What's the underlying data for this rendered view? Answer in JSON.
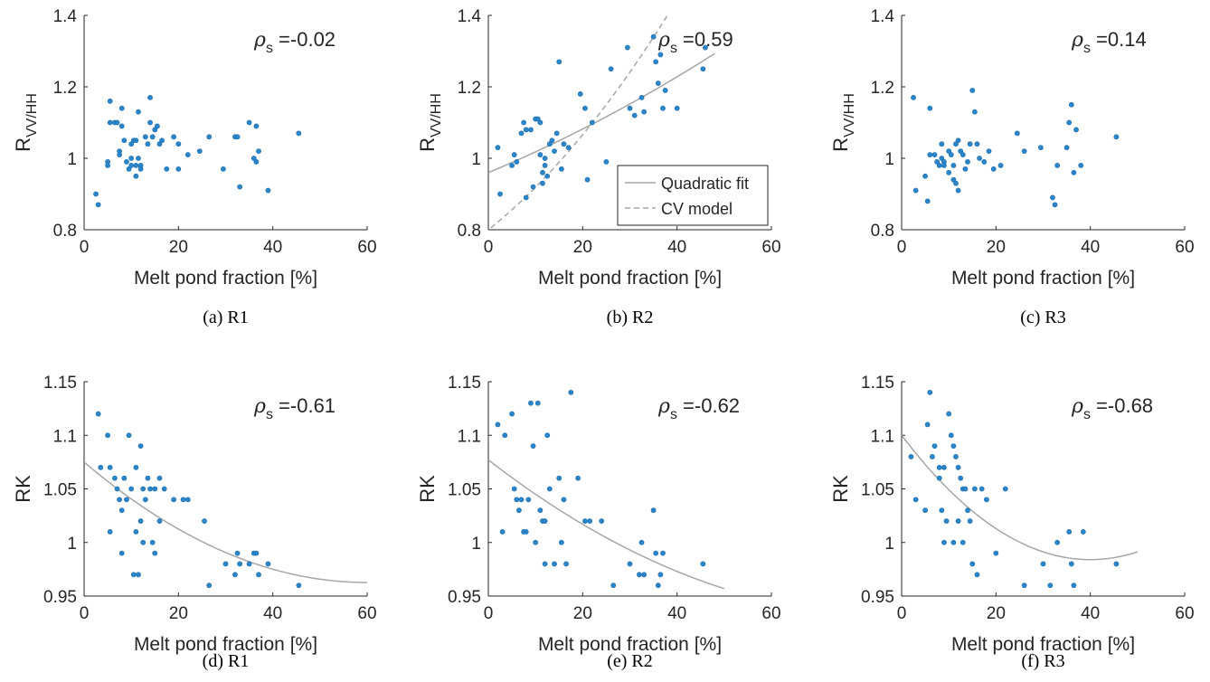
{
  "chart_data": [
    {
      "type": "scatter",
      "caption": "(a) R1",
      "xlabel": "Melt pond fraction [%]",
      "ylabel": "R",
      "ylabel_sub": "VV/HH",
      "xlim": [
        0,
        60
      ],
      "ylim": [
        0.8,
        1.4
      ],
      "xticks": [
        "0",
        "20",
        "40",
        "60"
      ],
      "yticks": [
        "0.8",
        "1",
        "1.2",
        "1.4"
      ],
      "annotation": {
        "symbol": "ρ",
        "sub": "s",
        "value": " =-0.02"
      },
      "points": [
        [
          2.5,
          0.9
        ],
        [
          3,
          0.87
        ],
        [
          5,
          0.99
        ],
        [
          5,
          0.98
        ],
        [
          5.5,
          1.16
        ],
        [
          5.5,
          1.1
        ],
        [
          6.5,
          1.1
        ],
        [
          7,
          1.1
        ],
        [
          7.5,
          1.02
        ],
        [
          7.5,
          1.01
        ],
        [
          8,
          1.14
        ],
        [
          8,
          1.09
        ],
        [
          8.5,
          1.05
        ],
        [
          9,
          0.99
        ],
        [
          9.5,
          0.97
        ],
        [
          10,
          1.04
        ],
        [
          10,
          1.0
        ],
        [
          10,
          0.98
        ],
        [
          10.5,
          1.05
        ],
        [
          11,
          1.05
        ],
        [
          11,
          0.98
        ],
        [
          11,
          0.95
        ],
        [
          11.5,
          1.13
        ],
        [
          11.5,
          1.0
        ],
        [
          12,
          0.98
        ],
        [
          12,
          0.97
        ],
        [
          13,
          1.06
        ],
        [
          13.5,
          1.04
        ],
        [
          14,
          1.17
        ],
        [
          14,
          1.1
        ],
        [
          14.5,
          1.06
        ],
        [
          15,
          1.08
        ],
        [
          15.5,
          1.09
        ],
        [
          16,
          1.04
        ],
        [
          16.5,
          1.05
        ],
        [
          17.5,
          0.97
        ],
        [
          19,
          1.06
        ],
        [
          20,
          1.04
        ],
        [
          20,
          0.97
        ],
        [
          22,
          1.01
        ],
        [
          24.5,
          1.02
        ],
        [
          26.5,
          1.06
        ],
        [
          29.5,
          0.97
        ],
        [
          32,
          1.06
        ],
        [
          32.5,
          1.06
        ],
        [
          33,
          0.92
        ],
        [
          35,
          1.1
        ],
        [
          36,
          1.0
        ],
        [
          36.5,
          0.99
        ],
        [
          36.5,
          1.09
        ],
        [
          37,
          1.02
        ],
        [
          39,
          0.91
        ],
        [
          45.5,
          1.07
        ]
      ],
      "fit": null
    },
    {
      "type": "scatter",
      "caption": "(b) R2",
      "xlabel": "Melt pond fraction [%]",
      "ylabel": "R",
      "ylabel_sub": "VV/HH",
      "xlim": [
        0,
        60
      ],
      "ylim": [
        0.8,
        1.4
      ],
      "xticks": [
        "0",
        "20",
        "40",
        "60"
      ],
      "yticks": [
        "0.8",
        "1",
        "1.2",
        "1.4"
      ],
      "annotation": {
        "symbol": "ρ",
        "sub": "s",
        "value": " =0.59"
      },
      "legend": {
        "position": "bottom-right",
        "entries": [
          "Quadratic fit",
          "CV model"
        ]
      },
      "points": [
        [
          2,
          1.03
        ],
        [
          2.5,
          0.9
        ],
        [
          5,
          0.98
        ],
        [
          5.5,
          1.01
        ],
        [
          6,
          0.99
        ],
        [
          7,
          1.07
        ],
        [
          7.5,
          1.1
        ],
        [
          8,
          1.08
        ],
        [
          8,
          0.89
        ],
        [
          9,
          1.08
        ],
        [
          9.5,
          0.92
        ],
        [
          10,
          1.11
        ],
        [
          10.5,
          1.11
        ],
        [
          11,
          1.1
        ],
        [
          11,
          1.01
        ],
        [
          11.5,
          0.96
        ],
        [
          11.5,
          0.93
        ],
        [
          12,
          1.0
        ],
        [
          12,
          0.98
        ],
        [
          12.5,
          0.95
        ],
        [
          13,
          1.04
        ],
        [
          13.5,
          1.05
        ],
        [
          14,
          1.02
        ],
        [
          14.5,
          1.07
        ],
        [
          15,
          1.27
        ],
        [
          15.5,
          0.97
        ],
        [
          16,
          1.04
        ],
        [
          17,
          1.03
        ],
        [
          19.5,
          1.18
        ],
        [
          20.5,
          1.14
        ],
        [
          21,
          0.94
        ],
        [
          22,
          1.1
        ],
        [
          25,
          0.99
        ],
        [
          26,
          1.25
        ],
        [
          29.5,
          1.31
        ],
        [
          30,
          1.14
        ],
        [
          31,
          1.12
        ],
        [
          32.5,
          1.17
        ],
        [
          33,
          1.13
        ],
        [
          35,
          1.34
        ],
        [
          35.5,
          1.27
        ],
        [
          36,
          1.21
        ],
        [
          36.5,
          1.29
        ],
        [
          37,
          1.14
        ],
        [
          37.5,
          1.19
        ],
        [
          40,
          1.14
        ],
        [
          45.5,
          1.25
        ],
        [
          46,
          1.31
        ]
      ],
      "fit": {
        "name": "Quadratic fit",
        "coef": [
          0.96,
          0.0055,
          3e-05
        ],
        "range": [
          0,
          48
        ]
      },
      "model": {
        "name": "CV model",
        "coef": [
          0.8,
          0.0105,
          0.00014
        ],
        "range": [
          0.5,
          38
        ]
      }
    },
    {
      "type": "scatter",
      "caption": "(c) R3",
      "xlabel": "Melt pond fraction [%]",
      "ylabel": "R",
      "ylabel_sub": "VV/HH",
      "xlim": [
        0,
        60
      ],
      "ylim": [
        0.8,
        1.4
      ],
      "xticks": [
        "0",
        "20",
        "40",
        "60"
      ],
      "yticks": [
        "0.8",
        "1",
        "1.2",
        "1.4"
      ],
      "annotation": {
        "symbol": "ρ",
        "sub": "s",
        "value": " =0.14"
      },
      "points": [
        [
          2.5,
          1.17
        ],
        [
          3,
          0.91
        ],
        [
          5,
          0.95
        ],
        [
          5.5,
          0.88
        ],
        [
          6,
          1.14
        ],
        [
          6,
          1.01
        ],
        [
          7,
          1.01
        ],
        [
          7.5,
          0.99
        ],
        [
          8,
          0.98
        ],
        [
          8.5,
          1.04
        ],
        [
          8.5,
          1.0
        ],
        [
          9,
          0.99
        ],
        [
          9,
          0.98
        ],
        [
          10,
          1.02
        ],
        [
          10,
          0.96
        ],
        [
          10.5,
          1.01
        ],
        [
          11,
          0.98
        ],
        [
          11,
          0.94
        ],
        [
          11.5,
          1.04
        ],
        [
          11.5,
          0.93
        ],
        [
          12,
          1.05
        ],
        [
          12,
          0.91
        ],
        [
          12.5,
          1.02
        ],
        [
          13,
          1.01
        ],
        [
          13.5,
          0.97
        ],
        [
          14,
          0.99
        ],
        [
          14.5,
          1.04
        ],
        [
          15,
          1.19
        ],
        [
          15.5,
          1.13
        ],
        [
          16,
          1.04
        ],
        [
          16.5,
          1.0
        ],
        [
          17.5,
          0.99
        ],
        [
          18.5,
          1.02
        ],
        [
          19.5,
          0.97
        ],
        [
          21,
          0.98
        ],
        [
          24.5,
          1.07
        ],
        [
          26,
          1.02
        ],
        [
          29.5,
          1.03
        ],
        [
          32,
          0.89
        ],
        [
          32.5,
          0.87
        ],
        [
          33,
          0.98
        ],
        [
          35,
          1.03
        ],
        [
          35.5,
          1.1
        ],
        [
          36,
          1.15
        ],
        [
          36.5,
          0.96
        ],
        [
          37,
          1.08
        ],
        [
          38,
          0.98
        ],
        [
          45.5,
          1.06
        ]
      ],
      "fit": null
    },
    {
      "type": "scatter",
      "caption": "(d) R1",
      "xlabel": "Melt pond fraction [%]",
      "ylabel": "RK",
      "ylabel_sub": "",
      "xlim": [
        0,
        60
      ],
      "ylim": [
        0.95,
        1.15
      ],
      "xticks": [
        "0",
        "20",
        "40",
        "60"
      ],
      "yticks": [
        "0.95",
        "1",
        "1.05",
        "1.1",
        "1.15"
      ],
      "annotation": {
        "symbol": "ρ",
        "sub": "s",
        "value": " =-0.61"
      },
      "points": [
        [
          3,
          1.12
        ],
        [
          3.5,
          1.07
        ],
        [
          5,
          1.1
        ],
        [
          5.5,
          1.07
        ],
        [
          5.5,
          1.01
        ],
        [
          6.5,
          1.06
        ],
        [
          7,
          1.05
        ],
        [
          7.5,
          1.04
        ],
        [
          8,
          1.03
        ],
        [
          8,
          0.99
        ],
        [
          8.5,
          1.06
        ],
        [
          9,
          1.04
        ],
        [
          9.5,
          1.1
        ],
        [
          10,
          1.05
        ],
        [
          10.5,
          0.97
        ],
        [
          11,
          1.01
        ],
        [
          11,
          1.07
        ],
        [
          11.5,
          0.97
        ],
        [
          12,
          1.09
        ],
        [
          12,
          1.02
        ],
        [
          12.5,
          1.05
        ],
        [
          12.5,
          1.0
        ],
        [
          13,
          1.04
        ],
        [
          13.5,
          1.06
        ],
        [
          14,
          1.05
        ],
        [
          14.5,
          1.0
        ],
        [
          15,
          0.99
        ],
        [
          15,
          1.05
        ],
        [
          16,
          1.06
        ],
        [
          16,
          1.02
        ],
        [
          17,
          1.05
        ],
        [
          19,
          1.04
        ],
        [
          21,
          1.04
        ],
        [
          22,
          1.04
        ],
        [
          25.5,
          1.02
        ],
        [
          26.5,
          0.96
        ],
        [
          30,
          0.98
        ],
        [
          32,
          0.97
        ],
        [
          32.5,
          0.99
        ],
        [
          33,
          0.98
        ],
        [
          35,
          0.98
        ],
        [
          36,
          0.99
        ],
        [
          36.5,
          0.99
        ],
        [
          37,
          0.97
        ],
        [
          39,
          0.98
        ],
        [
          45.5,
          0.96
        ]
      ],
      "fit": {
        "name": "Quadratic fit",
        "coef": [
          1.075,
          -0.00375,
          3.13e-05
        ],
        "range": [
          0,
          60
        ]
      }
    },
    {
      "type": "scatter",
      "caption": "(e) R2",
      "xlabel": "Melt pond fraction [%]",
      "ylabel": "RK",
      "ylabel_sub": "",
      "xlim": [
        0,
        60
      ],
      "ylim": [
        0.95,
        1.15
      ],
      "xticks": [
        "0",
        "20",
        "40",
        "60"
      ],
      "yticks": [
        "0.95",
        "1",
        "1.05",
        "1.1",
        "1.15"
      ],
      "annotation": {
        "symbol": "ρ",
        "sub": "s",
        "value": " =-0.62"
      },
      "points": [
        [
          2,
          1.11
        ],
        [
          3,
          1.01
        ],
        [
          3.5,
          1.1
        ],
        [
          5,
          1.12
        ],
        [
          5.5,
          1.05
        ],
        [
          6,
          1.04
        ],
        [
          6.5,
          1.03
        ],
        [
          7,
          1.04
        ],
        [
          7.5,
          1.01
        ],
        [
          8,
          1.01
        ],
        [
          8.5,
          1.04
        ],
        [
          9,
          1.13
        ],
        [
          9.5,
          1.09
        ],
        [
          10,
          1.0
        ],
        [
          10.5,
          1.13
        ],
        [
          11,
          1.03
        ],
        [
          11.5,
          1.02
        ],
        [
          12,
          1.02
        ],
        [
          12,
          0.98
        ],
        [
          12.5,
          1.1
        ],
        [
          13,
          1.05
        ],
        [
          14,
          0.98
        ],
        [
          15,
          1.06
        ],
        [
          15.5,
          1.0
        ],
        [
          16,
          1.04
        ],
        [
          16.5,
          0.98
        ],
        [
          17.5,
          1.14
        ],
        [
          19,
          1.06
        ],
        [
          20.5,
          1.02
        ],
        [
          21.5,
          1.02
        ],
        [
          24,
          1.02
        ],
        [
          26.5,
          0.96
        ],
        [
          30,
          0.98
        ],
        [
          32,
          0.97
        ],
        [
          32.5,
          1.0
        ],
        [
          33,
          0.97
        ],
        [
          35,
          1.03
        ],
        [
          35.5,
          0.99
        ],
        [
          36,
          0.96
        ],
        [
          36.5,
          0.97
        ],
        [
          37,
          0.99
        ],
        [
          45.5,
          0.98
        ]
      ],
      "fit": {
        "name": "Quadratic fit",
        "coef": [
          1.077,
          -0.0034,
          2e-05
        ],
        "range": [
          0,
          50
        ]
      }
    },
    {
      "type": "scatter",
      "caption": "(f) R3",
      "xlabel": "Melt pond fraction [%]",
      "ylabel": "RK",
      "ylabel_sub": "",
      "xlim": [
        0,
        60
      ],
      "ylim": [
        0.95,
        1.15
      ],
      "xticks": [
        "0",
        "20",
        "40",
        "60"
      ],
      "yticks": [
        "0.95",
        "1",
        "1.05",
        "1.1",
        "1.15"
      ],
      "annotation": {
        "symbol": "ρ",
        "sub": "s",
        "value": " =-0.68"
      },
      "points": [
        [
          2,
          1.08
        ],
        [
          3,
          1.04
        ],
        [
          5,
          1.03
        ],
        [
          5.5,
          1.11
        ],
        [
          6,
          1.14
        ],
        [
          6.5,
          1.08
        ],
        [
          7,
          1.09
        ],
        [
          8,
          1.07
        ],
        [
          8,
          1.06
        ],
        [
          8.5,
          1.03
        ],
        [
          9,
          1.0
        ],
        [
          9,
          1.07
        ],
        [
          9.5,
          1.02
        ],
        [
          10,
          1.12
        ],
        [
          10.5,
          1.1
        ],
        [
          11,
          1.09
        ],
        [
          11,
          1.0
        ],
        [
          11.5,
          1.08
        ],
        [
          12,
          1.07
        ],
        [
          12,
          1.02
        ],
        [
          12.5,
          1.06
        ],
        [
          13,
          1.05
        ],
        [
          13,
          1.0
        ],
        [
          13.5,
          1.05
        ],
        [
          14,
          1.03
        ],
        [
          14.5,
          1.02
        ],
        [
          15,
          0.98
        ],
        [
          15.5,
          1.05
        ],
        [
          16,
          0.97
        ],
        [
          17,
          1.05
        ],
        [
          18,
          1.04
        ],
        [
          20,
          0.99
        ],
        [
          22,
          1.05
        ],
        [
          26,
          0.96
        ],
        [
          30,
          0.98
        ],
        [
          31.5,
          0.96
        ],
        [
          33,
          1.0
        ],
        [
          35.5,
          1.01
        ],
        [
          36,
          0.98
        ],
        [
          36.5,
          0.96
        ],
        [
          38.5,
          1.01
        ],
        [
          45.5,
          0.98
        ]
      ],
      "fit": {
        "name": "Quadratic fit",
        "coef": [
          1.1,
          -0.0058,
          7.25e-05
        ],
        "range": [
          0,
          50
        ]
      }
    }
  ]
}
